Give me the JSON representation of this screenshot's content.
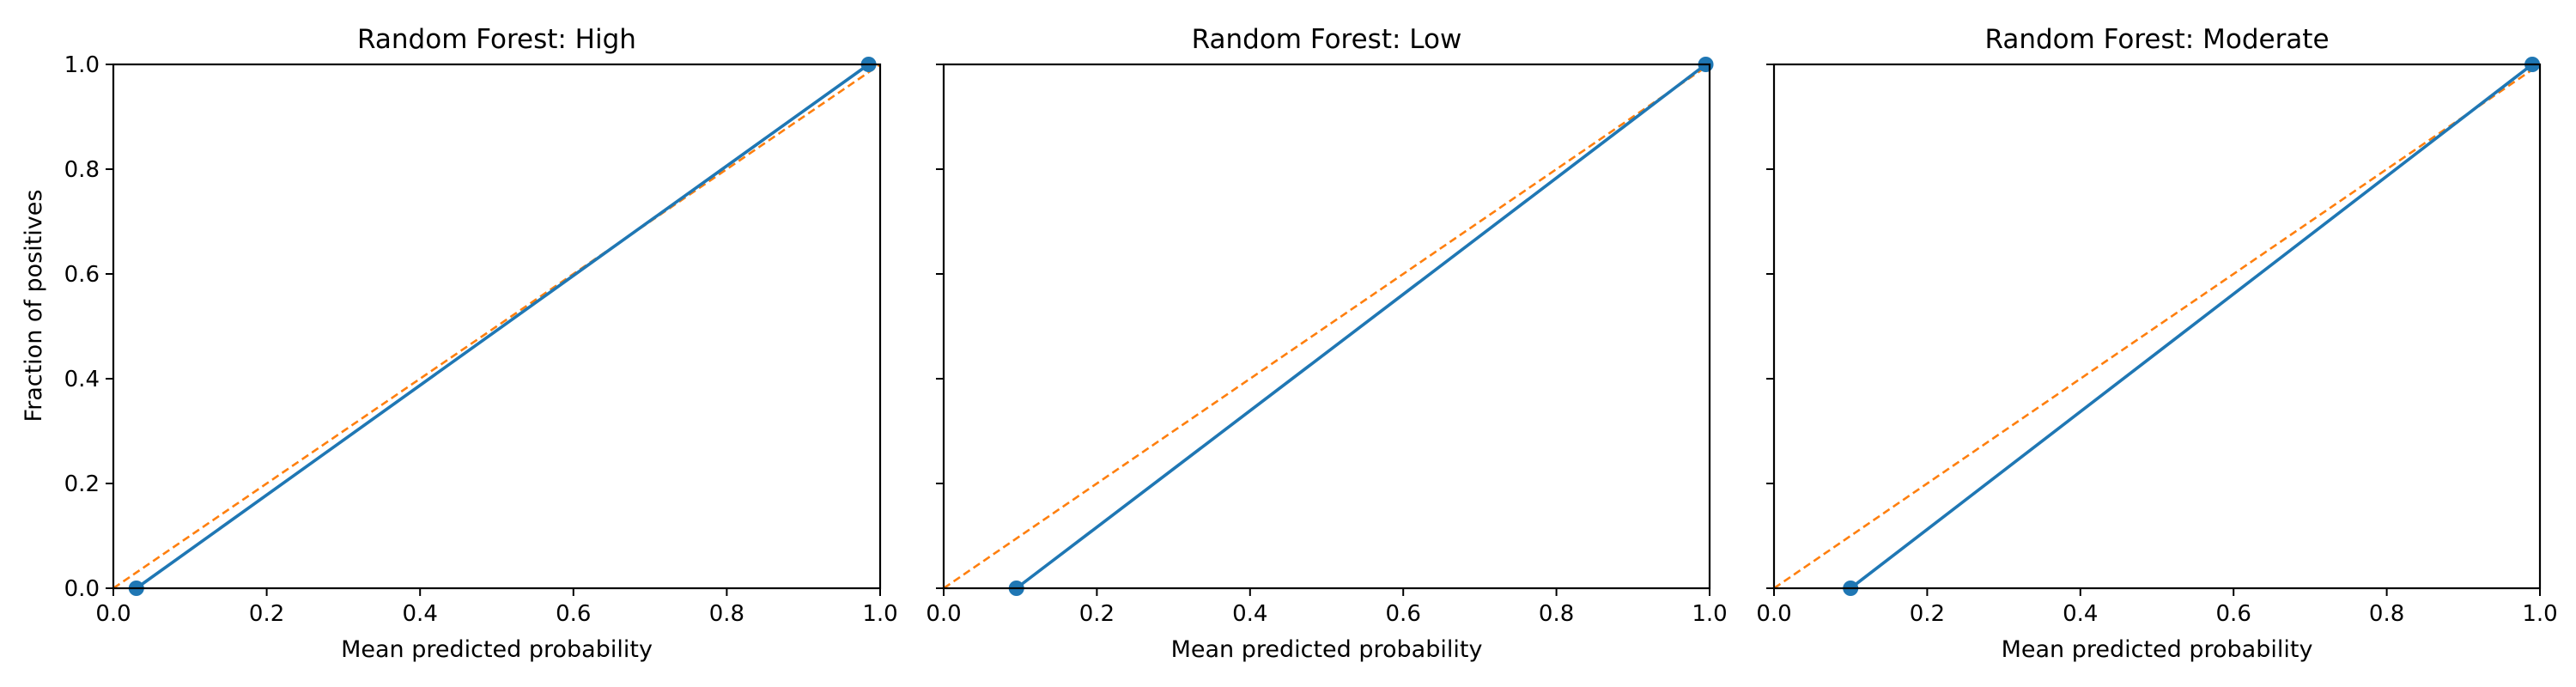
{
  "figure": {
    "ylabel": "Fraction of positives",
    "xlabel": "Mean predicted probability"
  },
  "colors": {
    "calibration": "#1f77b4",
    "reference": "#ff7f0e",
    "axes": "#000000",
    "background": "#ffffff"
  },
  "chart_data": [
    {
      "type": "line",
      "title": "Random Forest: High",
      "xlabel": "Mean predicted probability",
      "ylabel": "Fraction of positives",
      "xlim": [
        0.0,
        1.0
      ],
      "ylim": [
        0.0,
        1.0
      ],
      "xticks": [
        "0.0",
        "0.2",
        "0.4",
        "0.6",
        "0.8",
        "1.0"
      ],
      "yticks": [
        "0.0",
        "0.2",
        "0.4",
        "0.6",
        "0.8",
        "1.0"
      ],
      "grid": false,
      "series": [
        {
          "style": "solid-markers",
          "x": [
            0.03,
            0.985
          ],
          "y": [
            0.0,
            1.0
          ]
        },
        {
          "style": "dashed",
          "x": [
            0.0,
            1.0
          ],
          "y": [
            0.0,
            1.0
          ]
        }
      ]
    },
    {
      "type": "line",
      "title": "Random Forest: Low",
      "xlabel": "Mean predicted probability",
      "ylabel": "",
      "xlim": [
        0.0,
        1.0
      ],
      "ylim": [
        0.0,
        1.0
      ],
      "xticks": [
        "0.0",
        "0.2",
        "0.4",
        "0.6",
        "0.8",
        "1.0"
      ],
      "yticks": [],
      "grid": false,
      "series": [
        {
          "style": "solid-markers",
          "x": [
            0.095,
            0.995
          ],
          "y": [
            0.0,
            1.0
          ]
        },
        {
          "style": "dashed",
          "x": [
            0.0,
            1.0
          ],
          "y": [
            0.0,
            1.0
          ]
        }
      ]
    },
    {
      "type": "line",
      "title": "Random Forest: Moderate",
      "xlabel": "Mean predicted probability",
      "ylabel": "",
      "xlim": [
        0.0,
        1.0
      ],
      "ylim": [
        0.0,
        1.0
      ],
      "xticks": [
        "0.0",
        "0.2",
        "0.4",
        "0.6",
        "0.8",
        "1.0"
      ],
      "yticks": [],
      "grid": false,
      "series": [
        {
          "style": "solid-markers",
          "x": [
            0.1,
            0.99
          ],
          "y": [
            0.0,
            1.0
          ]
        },
        {
          "style": "dashed",
          "x": [
            0.0,
            1.0
          ],
          "y": [
            0.0,
            1.0
          ]
        }
      ]
    }
  ]
}
